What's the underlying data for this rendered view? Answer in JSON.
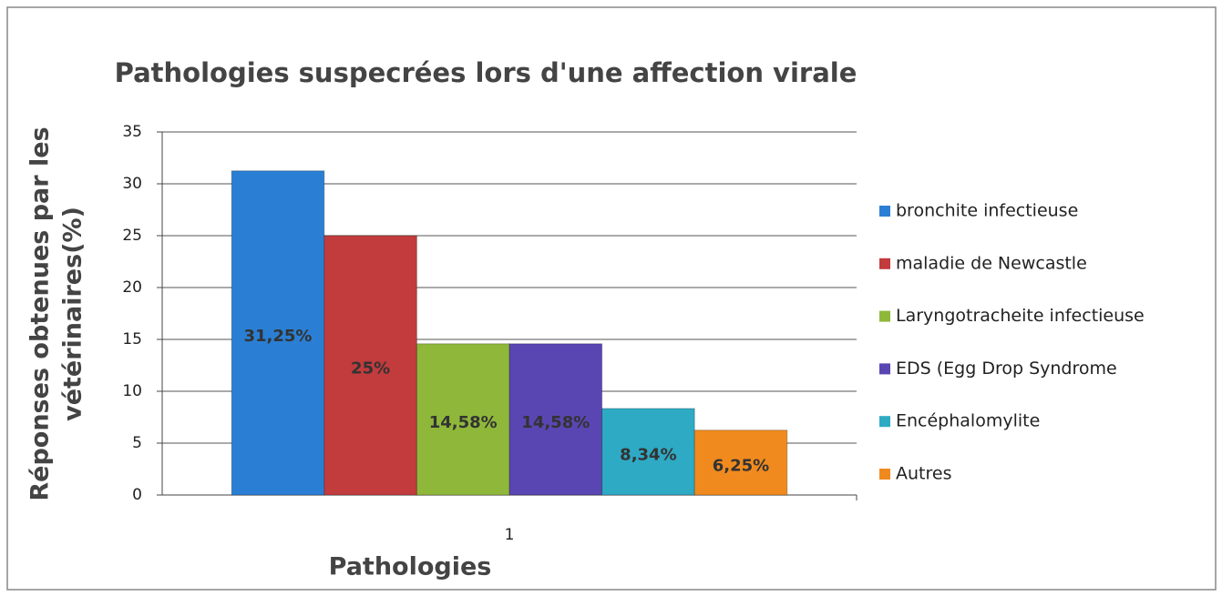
{
  "chart_data": {
    "type": "bar",
    "title": "Pathologies suspecrées lors d'une affection virale",
    "xlabel": "Pathologies",
    "ylabel": [
      "Réponses obtenues par les",
      "vétérinaires(%)"
    ],
    "categories": [
      "1"
    ],
    "series": [
      {
        "name": "bronchite infectieuse",
        "color": "#2a7fd4",
        "values": [
          31.25
        ],
        "value_labels": [
          "31,25%"
        ]
      },
      {
        "name": "maladie de Newcastle",
        "color": "#c23b3d",
        "values": [
          25
        ],
        "value_labels": [
          "25%"
        ]
      },
      {
        "name": "Laryngotracheite infectieuse",
        "color": "#8fb83a",
        "values": [
          14.58
        ],
        "value_labels": [
          "14,58%"
        ]
      },
      {
        "name": "EDS (Egg Drop Syndrome",
        "color": "#5a46b2",
        "values": [
          14.58
        ],
        "value_labels": [
          "14,58%"
        ]
      },
      {
        "name": "Encéphalomylite",
        "color": "#2eaac4",
        "values": [
          8.34
        ],
        "value_labels": [
          "8,34%"
        ]
      },
      {
        "name": "Autres",
        "color": "#f08a1e",
        "values": [
          6.25
        ],
        "value_labels": [
          "6,25%"
        ]
      }
    ],
    "ylim": [
      0,
      35
    ],
    "yticks": [
      0,
      5,
      10,
      15,
      20,
      25,
      30,
      35
    ],
    "grid": true,
    "legend": "right"
  }
}
